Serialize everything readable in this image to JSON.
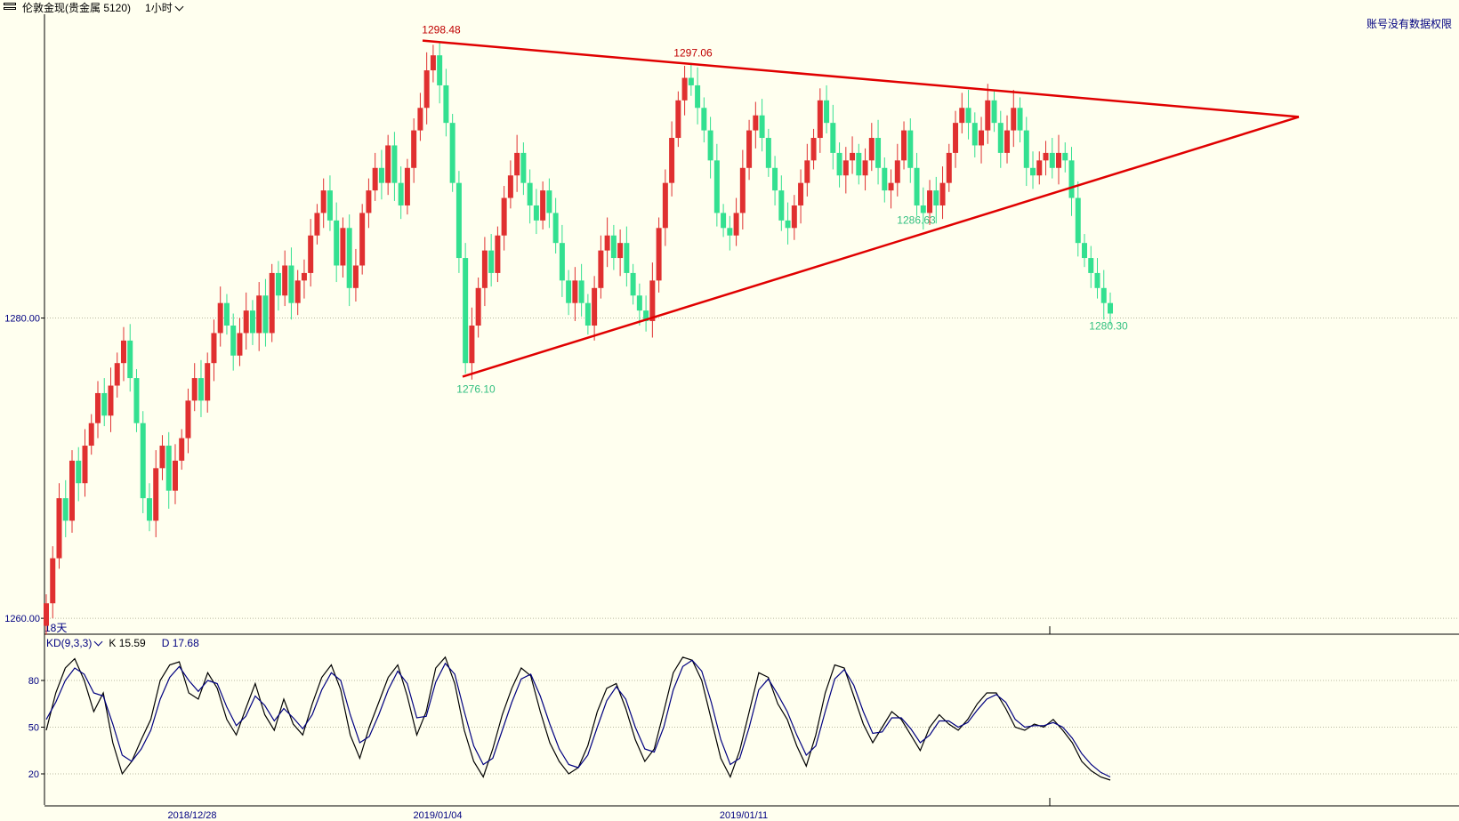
{
  "toolbar": {
    "instrument": "伦敦金现(贵金属 5120)",
    "period": "1小时"
  },
  "status": {
    "no_data": "账号没有数据权限",
    "range_label": "18天"
  },
  "colors": {
    "background": "#ffffef",
    "up": "#e03030",
    "down": "#33e090",
    "trendline": "#e00000",
    "k_line": "#000000",
    "d_line": "#000080",
    "axis_text": "#000080"
  },
  "chart_data": [
    {
      "type": "candlestick",
      "title": "",
      "ylim": [
        1259,
        1300
      ],
      "yticks": [
        "1280.00",
        "1260.00"
      ],
      "xticks": [
        "2018/12/28",
        "2019/01/04",
        "2019/01/11"
      ],
      "grid": true,
      "series": [
        {
          "values": [
            1261.0,
            1264.0,
            1268.0,
            1266.5,
            1270.5,
            1269.0,
            1271.5,
            1273.0,
            1275.0,
            1273.5,
            1275.5,
            1277.0,
            1278.5,
            1276.0,
            1273.0,
            1268.0,
            1266.5,
            1270.0,
            1271.5,
            1268.5,
            1270.5,
            1272.0,
            1274.5,
            1276.0,
            1274.5,
            1277.0,
            1279.0,
            1281.0,
            1279.5,
            1277.5,
            1279.0,
            1280.5,
            1279.0,
            1281.5,
            1279.0,
            1283.0,
            1281.5,
            1283.5,
            1281.0,
            1282.5,
            1283.0,
            1285.5,
            1287.0,
            1288.5,
            1286.5,
            1283.5,
            1286.0,
            1282.0,
            1283.5,
            1287.0,
            1288.5,
            1290.0,
            1289.0,
            1291.5,
            1289.0,
            1287.5,
            1290.0,
            1292.5,
            1294.0,
            1296.5,
            1297.5,
            1295.5,
            1293.0,
            1289.0,
            1284.0,
            1277.0,
            1279.5,
            1282.0,
            1284.5,
            1283.0,
            1285.5,
            1288.0,
            1289.5,
            1291.0,
            1289.0,
            1287.5,
            1286.5,
            1288.5,
            1287.0,
            1285.0,
            1282.5,
            1281.0,
            1282.5,
            1281.0,
            1279.5,
            1282.0,
            1284.5,
            1285.5,
            1284.0,
            1285.0,
            1283.0,
            1281.5,
            1280.5,
            1279.8,
            1282.5,
            1286.0,
            1289.0,
            1292.0,
            1294.5,
            1296.0,
            1295.5,
            1294.0,
            1292.5,
            1290.5,
            1287.0,
            1286.0,
            1285.5,
            1287.0,
            1290.0,
            1292.5,
            1293.5,
            1292.0,
            1290.0,
            1288.5,
            1286.5,
            1286.0,
            1287.5,
            1289.0,
            1290.5,
            1292.0,
            1294.5,
            1293.0,
            1291.0,
            1289.5,
            1290.5,
            1291.0,
            1289.5,
            1290.5,
            1292.0,
            1290.0,
            1288.5,
            1289.0,
            1290.5,
            1292.5,
            1290.0,
            1287.5,
            1287.0,
            1288.5,
            1287.5,
            1289.0,
            1291.0,
            1293.0,
            1294.0,
            1293.0,
            1291.5,
            1292.5,
            1294.5,
            1293.0,
            1291.0,
            1292.5,
            1294.0,
            1292.5,
            1290.0,
            1289.5,
            1290.5,
            1291.0,
            1290.0,
            1291.0,
            1290.5,
            1288.0,
            1285.0,
            1284.0,
            1283.0,
            1282.0,
            1281.0,
            1280.3
          ]
        }
      ],
      "annotations": [
        "1298.48",
        "1297.06",
        "1276.10",
        "1286.63",
        "1280.30"
      ]
    },
    {
      "type": "line",
      "title": "KD(9,3,3)",
      "ylim": [
        0,
        100
      ],
      "yticks": [
        "80",
        "50",
        "20"
      ],
      "grid": true,
      "series": [
        {
          "name": "K",
          "values": [
            48,
            72,
            88,
            94,
            80,
            60,
            72,
            40,
            20,
            28,
            42,
            55,
            80,
            90,
            92,
            72,
            68,
            85,
            75,
            55,
            45,
            62,
            78,
            58,
            48,
            68,
            52,
            45,
            65,
            82,
            90,
            74,
            45,
            30,
            50,
            66,
            82,
            90,
            70,
            45,
            60,
            88,
            95,
            78,
            48,
            28,
            18,
            36,
            58,
            75,
            88,
            83,
            60,
            40,
            28,
            20,
            24,
            38,
            60,
            75,
            78,
            62,
            42,
            28,
            36,
            60,
            85,
            95,
            93,
            80,
            55,
            30,
            18,
            35,
            60,
            85,
            82,
            65,
            55,
            38,
            25,
            45,
            72,
            90,
            88,
            70,
            52,
            40,
            50,
            60,
            55,
            45,
            35,
            50,
            58,
            52,
            48,
            55,
            65,
            72,
            72,
            62,
            50,
            48,
            52,
            50,
            55,
            48,
            40,
            28,
            22,
            18,
            16
          ],
          "color": "#000000"
        },
        {
          "name": "D",
          "values": [
            55,
            66,
            80,
            88,
            84,
            72,
            70,
            52,
            32,
            28,
            36,
            48,
            68,
            82,
            89,
            80,
            73,
            80,
            78,
            63,
            51,
            57,
            70,
            64,
            54,
            62,
            56,
            49,
            58,
            74,
            85,
            80,
            58,
            40,
            44,
            58,
            74,
            86,
            78,
            56,
            57,
            79,
            91,
            84,
            60,
            38,
            26,
            30,
            48,
            66,
            81,
            84,
            70,
            52,
            36,
            26,
            24,
            32,
            50,
            67,
            76,
            68,
            50,
            36,
            34,
            50,
            74,
            89,
            93,
            86,
            66,
            42,
            26,
            30,
            50,
            74,
            81,
            71,
            60,
            45,
            32,
            38,
            60,
            81,
            87,
            77,
            60,
            46,
            47,
            56,
            56,
            49,
            40,
            45,
            54,
            54,
            50,
            53,
            61,
            68,
            71,
            66,
            55,
            50,
            51,
            51,
            53,
            50,
            43,
            33,
            26,
            21,
            18
          ],
          "color": "#000080"
        }
      ],
      "legend_values": {
        "k": "K 15.59",
        "d": "D 17.68"
      }
    }
  ]
}
